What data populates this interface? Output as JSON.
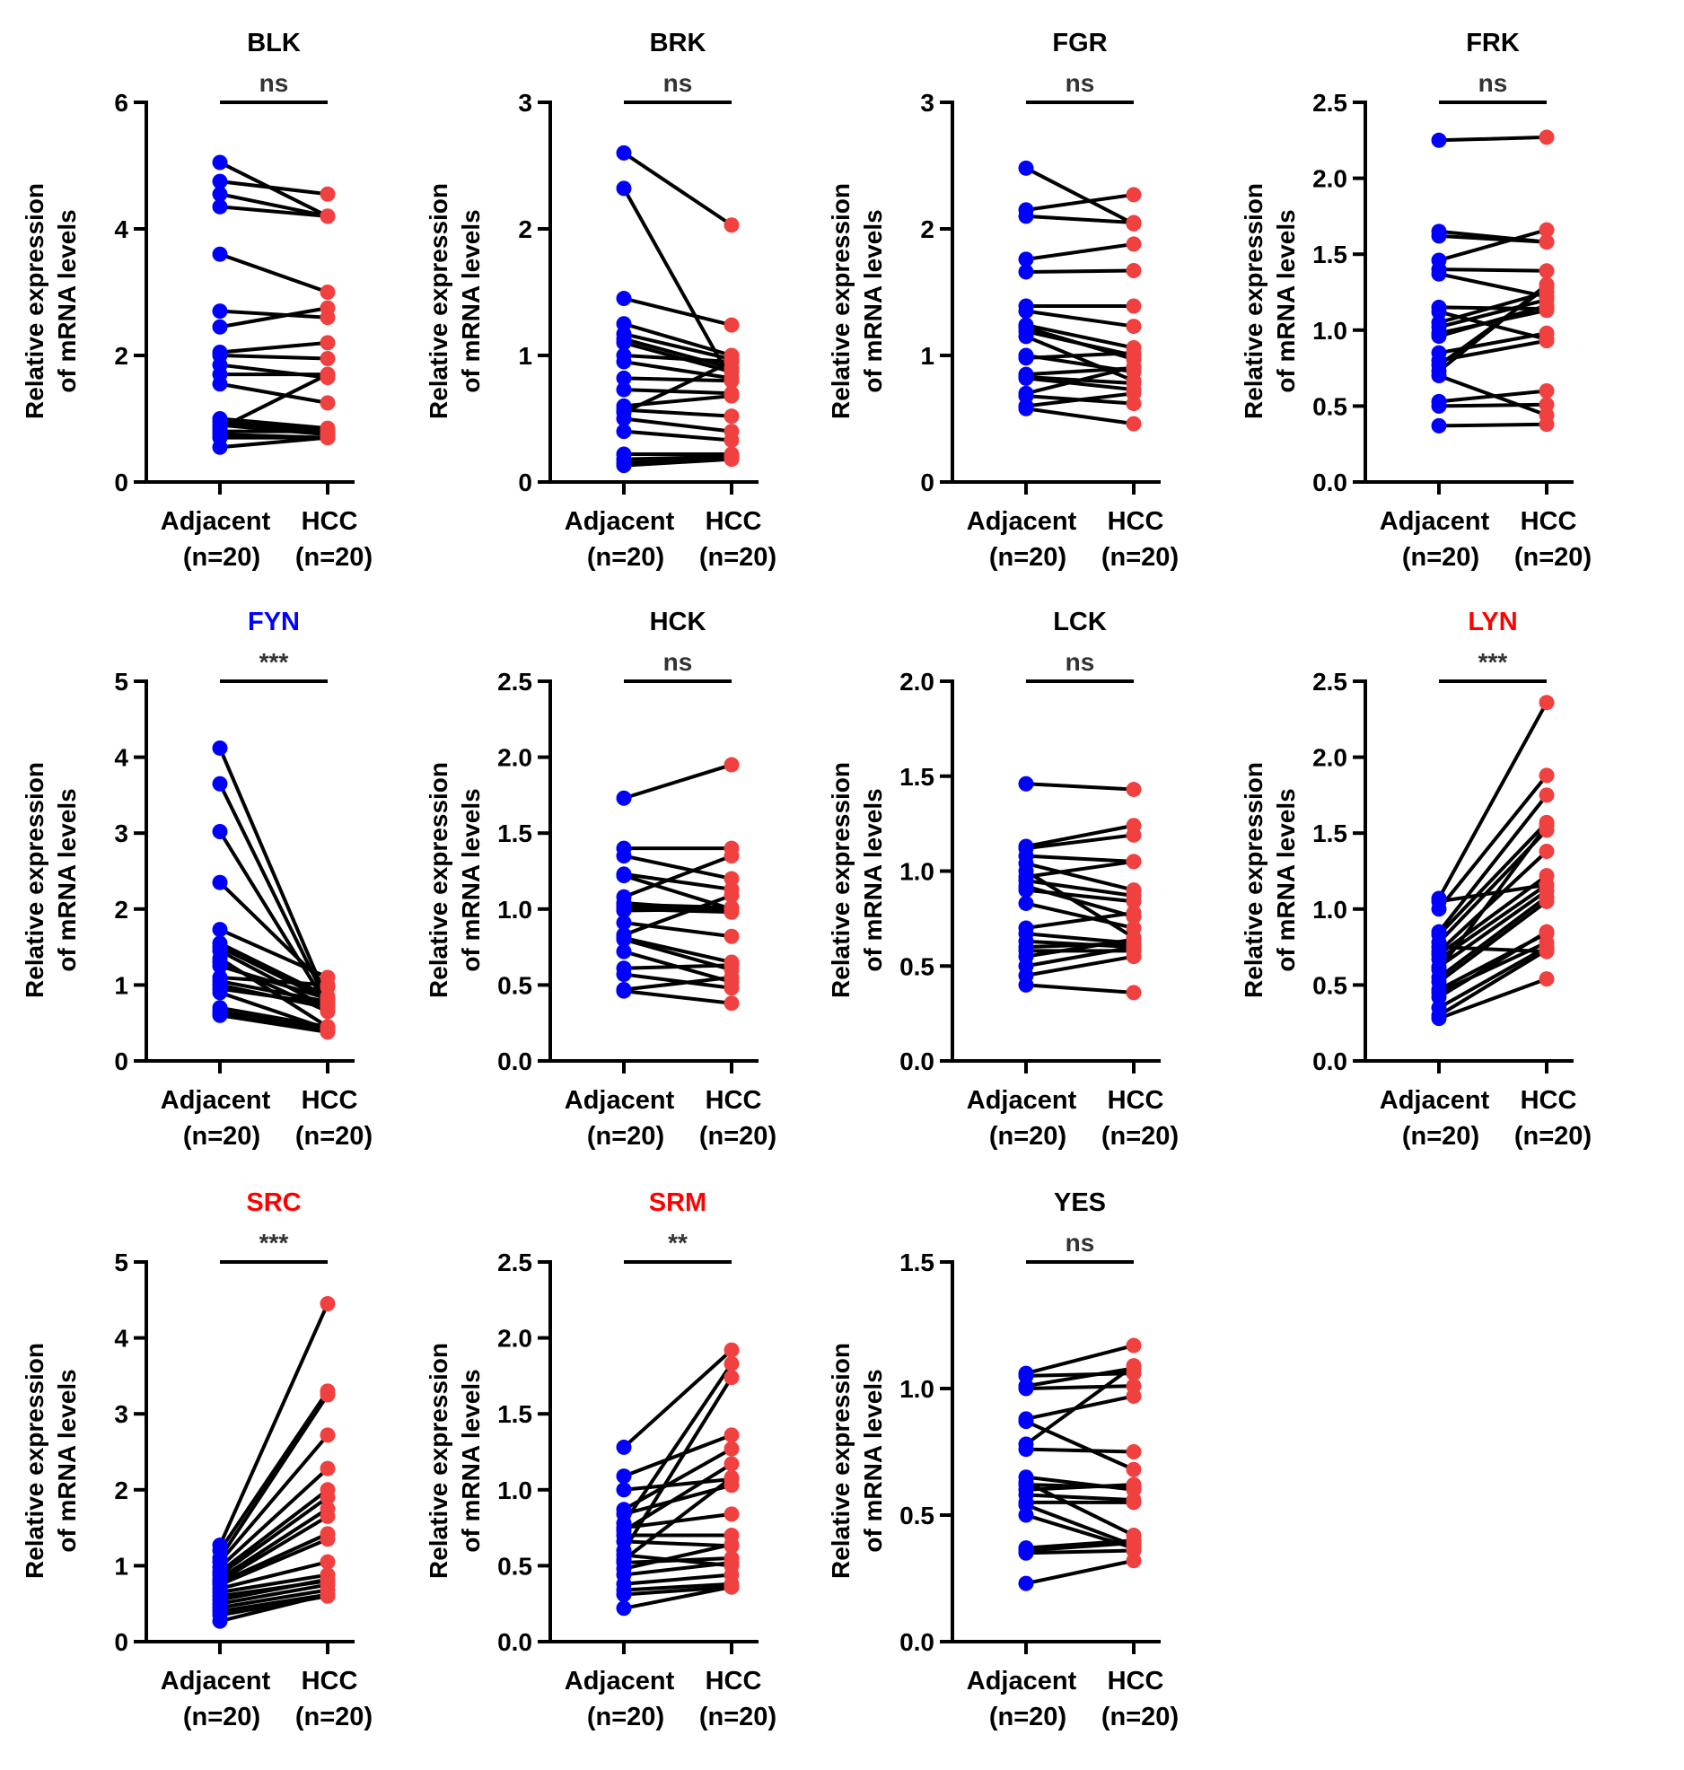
{
  "colors": {
    "adjacent_point": "#0000FF",
    "hcc_point": "#F04040",
    "title_default": "#000000",
    "title_down": "#0000FF",
    "title_up": "#FF0000",
    "line": "#000000"
  },
  "chart_data": [
    {
      "type": "scatter",
      "subtype": "paired-dot",
      "title": "BLK",
      "title_color": "#000000",
      "significance": "ns",
      "ylabel": "Relative expression of mRNA levels",
      "ylabel_lines": [
        "Relative expression",
        "of mRNA levels"
      ],
      "categories": [
        "Adjacent",
        "HCC"
      ],
      "category_n": [
        "(n=20)",
        "(n=20)"
      ],
      "ylim": [
        0,
        6
      ],
      "yticks": [
        0,
        2,
        4,
        6
      ],
      "ytick_labels": [
        "0",
        "2",
        "4",
        "6"
      ],
      "pairs": [
        [
          5.05,
          4.2
        ],
        [
          4.75,
          4.55
        ],
        [
          4.55,
          4.2
        ],
        [
          4.35,
          4.2
        ],
        [
          3.6,
          3.0
        ],
        [
          2.7,
          2.6
        ],
        [
          2.45,
          2.75
        ],
        [
          2.05,
          2.2
        ],
        [
          2.0,
          1.95
        ],
        [
          1.85,
          1.65
        ],
        [
          1.7,
          1.7
        ],
        [
          1.55,
          1.25
        ],
        [
          1.0,
          0.85
        ],
        [
          0.95,
          0.8
        ],
        [
          0.9,
          0.75
        ],
        [
          0.85,
          1.7
        ],
        [
          0.8,
          0.8
        ],
        [
          0.75,
          0.7
        ],
        [
          0.7,
          0.7
        ],
        [
          0.55,
          0.7
        ]
      ]
    },
    {
      "type": "scatter",
      "subtype": "paired-dot",
      "title": "BRK",
      "title_color": "#000000",
      "significance": "ns",
      "ylabel": "Relative expression of mRNA levels",
      "ylabel_lines": [
        "Relative expression",
        "of mRNA levels"
      ],
      "categories": [
        "Adjacent",
        "HCC"
      ],
      "category_n": [
        "(n=20)",
        "(n=20)"
      ],
      "ylim": [
        0,
        3
      ],
      "yticks": [
        0,
        1,
        2,
        3
      ],
      "ytick_labels": [
        "0",
        "1",
        "2",
        "3"
      ],
      "pairs": [
        [
          2.6,
          2.03
        ],
        [
          2.32,
          0.8
        ],
        [
          1.45,
          1.24
        ],
        [
          1.25,
          1.0
        ],
        [
          1.17,
          0.97
        ],
        [
          1.13,
          0.9
        ],
        [
          1.1,
          0.87
        ],
        [
          1.0,
          0.95
        ],
        [
          0.95,
          0.82
        ],
        [
          0.82,
          0.8
        ],
        [
          0.73,
          0.7
        ],
        [
          0.6,
          0.68
        ],
        [
          0.57,
          0.52
        ],
        [
          0.55,
          0.95
        ],
        [
          0.5,
          0.4
        ],
        [
          0.4,
          0.33
        ],
        [
          0.22,
          0.22
        ],
        [
          0.18,
          0.2
        ],
        [
          0.15,
          0.19
        ],
        [
          0.13,
          0.18
        ]
      ]
    },
    {
      "type": "scatter",
      "subtype": "paired-dot",
      "title": "FGR",
      "title_color": "#000000",
      "significance": "ns",
      "ylabel": "Relative expression of mRNA levels",
      "ylabel_lines": [
        "Relative expression",
        "of mRNA levels"
      ],
      "categories": [
        "Adjacent",
        "HCC"
      ],
      "category_n": [
        "(n=20)",
        "(n=20)"
      ],
      "ylim": [
        0,
        3
      ],
      "yticks": [
        0,
        1,
        2,
        3
      ],
      "ytick_labels": [
        "0",
        "1",
        "2",
        "3"
      ],
      "pairs": [
        [
          2.48,
          2.04
        ],
        [
          2.15,
          2.27
        ],
        [
          2.1,
          2.05
        ],
        [
          1.76,
          1.88
        ],
        [
          1.66,
          1.67
        ],
        [
          1.39,
          1.39
        ],
        [
          1.35,
          1.23
        ],
        [
          1.24,
          1.06
        ],
        [
          1.22,
          0.97
        ],
        [
          1.19,
          1.0
        ],
        [
          1.15,
          0.8
        ],
        [
          1.0,
          0.87
        ],
        [
          0.98,
          1.02
        ],
        [
          0.85,
          0.9
        ],
        [
          0.83,
          0.78
        ],
        [
          0.82,
          0.73
        ],
        [
          0.7,
          0.91
        ],
        [
          0.68,
          0.62
        ],
        [
          0.6,
          0.7
        ],
        [
          0.58,
          0.46
        ]
      ]
    },
    {
      "type": "scatter",
      "subtype": "paired-dot",
      "title": "FRK",
      "title_color": "#000000",
      "significance": "ns",
      "ylabel": "Relative expression of mRNA levels",
      "ylabel_lines": [
        "Relative expression",
        "of mRNA levels"
      ],
      "categories": [
        "Adjacent",
        "HCC"
      ],
      "category_n": [
        "(n=20)",
        "(n=20)"
      ],
      "ylim": [
        0,
        2.5
      ],
      "yticks": [
        0,
        0.5,
        1.0,
        1.5,
        2.0,
        2.5
      ],
      "ytick_labels": [
        "0.0",
        "0.5",
        "1.0",
        "1.5",
        "2.0",
        "2.5"
      ],
      "pairs": [
        [
          2.25,
          2.27
        ],
        [
          1.65,
          1.58
        ],
        [
          1.62,
          1.58
        ],
        [
          1.46,
          1.66
        ],
        [
          1.4,
          1.39
        ],
        [
          1.37,
          1.22
        ],
        [
          1.15,
          1.14
        ],
        [
          1.12,
          0.94
        ],
        [
          1.05,
          1.25
        ],
        [
          1.02,
          1.2
        ],
        [
          0.98,
          1.13
        ],
        [
          0.96,
          1.16
        ],
        [
          0.85,
          0.98
        ],
        [
          0.8,
          0.93
        ],
        [
          0.77,
          1.28
        ],
        [
          0.73,
          1.3
        ],
        [
          0.7,
          0.44
        ],
        [
          0.53,
          0.6
        ],
        [
          0.5,
          0.51
        ],
        [
          0.37,
          0.38
        ]
      ]
    },
    {
      "type": "scatter",
      "subtype": "paired-dot",
      "title": "FYN",
      "title_color": "#0000FF",
      "significance": "***",
      "ylabel": "Relative expression of mRNA levels",
      "ylabel_lines": [
        "Relative expression",
        "of mRNA levels"
      ],
      "categories": [
        "Adjacent",
        "HCC"
      ],
      "category_n": [
        "(n=20)",
        "(n=20)"
      ],
      "ylim": [
        0,
        5
      ],
      "yticks": [
        0,
        1,
        2,
        3,
        4,
        5
      ],
      "ytick_labels": [
        "0",
        "1",
        "2",
        "3",
        "4",
        "5"
      ],
      "pairs": [
        [
          4.12,
          0.8
        ],
        [
          3.65,
          0.75
        ],
        [
          3.02,
          0.72
        ],
        [
          2.35,
          0.97
        ],
        [
          1.73,
          1.1
        ],
        [
          1.55,
          0.85
        ],
        [
          1.5,
          0.8
        ],
        [
          1.45,
          0.7
        ],
        [
          1.35,
          0.45
        ],
        [
          1.3,
          0.65
        ],
        [
          1.25,
          0.82
        ],
        [
          1.1,
          1.0
        ],
        [
          1.05,
          0.78
        ],
        [
          1.0,
          0.7
        ],
        [
          0.95,
          0.75
        ],
        [
          0.9,
          0.42
        ],
        [
          0.7,
          0.45
        ],
        [
          0.65,
          0.42
        ],
        [
          0.62,
          0.4
        ],
        [
          0.6,
          0.38
        ]
      ]
    },
    {
      "type": "scatter",
      "subtype": "paired-dot",
      "title": "HCK",
      "title_color": "#000000",
      "significance": "ns",
      "ylabel": "Relative expression of mRNA levels",
      "ylabel_lines": [
        "Relative expression",
        "of mRNA levels"
      ],
      "categories": [
        "Adjacent",
        "HCC"
      ],
      "category_n": [
        "(n=20)",
        "(n=20)"
      ],
      "ylim": [
        0,
        2.5
      ],
      "yticks": [
        0,
        0.5,
        1.0,
        1.5,
        2.0,
        2.5
      ],
      "ytick_labels": [
        "0.0",
        "0.5",
        "1.0",
        "1.5",
        "2.0",
        "2.5"
      ],
      "pairs": [
        [
          1.73,
          1.95
        ],
        [
          1.4,
          1.4
        ],
        [
          1.35,
          1.2
        ],
        [
          1.23,
          1.13
        ],
        [
          1.22,
          1.0
        ],
        [
          1.08,
          1.35
        ],
        [
          1.04,
          0.99
        ],
        [
          1.03,
          1.01
        ],
        [
          1.02,
          0.98
        ],
        [
          1.0,
          0.98
        ],
        [
          0.99,
          1.0
        ],
        [
          0.91,
          0.82
        ],
        [
          0.83,
          1.09
        ],
        [
          0.81,
          0.65
        ],
        [
          0.8,
          0.6
        ],
        [
          0.72,
          0.52
        ],
        [
          0.61,
          0.63
        ],
        [
          0.57,
          0.48
        ],
        [
          0.47,
          0.55
        ],
        [
          0.46,
          0.38
        ]
      ]
    },
    {
      "type": "scatter",
      "subtype": "paired-dot",
      "title": "LCK",
      "title_color": "#000000",
      "significance": "ns",
      "ylabel": "Relative expression of mRNA levels",
      "ylabel_lines": [
        "Relative expression",
        "of mRNA levels"
      ],
      "categories": [
        "Adjacent",
        "HCC"
      ],
      "category_n": [
        "(n=20)",
        "(n=20)"
      ],
      "ylim": [
        0,
        2.0
      ],
      "yticks": [
        0,
        0.5,
        1.0,
        1.5,
        2.0
      ],
      "ytick_labels": [
        "0.0",
        "0.5",
        "1.0",
        "1.5",
        "2.0"
      ],
      "pairs": [
        [
          1.46,
          1.43
        ],
        [
          1.13,
          1.24
        ],
        [
          1.12,
          1.19
        ],
        [
          1.08,
          1.05
        ],
        [
          1.04,
          0.9
        ],
        [
          1.0,
          0.65
        ],
        [
          0.97,
          1.05
        ],
        [
          0.95,
          0.87
        ],
        [
          0.92,
          0.76
        ],
        [
          0.9,
          0.84
        ],
        [
          0.83,
          0.7
        ],
        [
          0.7,
          0.78
        ],
        [
          0.67,
          0.62
        ],
        [
          0.63,
          0.6
        ],
        [
          0.58,
          0.58
        ],
        [
          0.6,
          0.62
        ],
        [
          0.55,
          0.64
        ],
        [
          0.5,
          0.6
        ],
        [
          0.45,
          0.55
        ],
        [
          0.4,
          0.36
        ]
      ]
    },
    {
      "type": "scatter",
      "subtype": "paired-dot",
      "title": "LYN",
      "title_color": "#FF0000",
      "significance": "***",
      "ylabel": "Relative expression of mRNA levels",
      "ylabel_lines": [
        "Relative expression",
        "of mRNA levels"
      ],
      "categories": [
        "Adjacent",
        "HCC"
      ],
      "category_n": [
        "(n=20)",
        "(n=20)"
      ],
      "ylim": [
        0,
        2.5
      ],
      "yticks": [
        0,
        0.5,
        1.0,
        1.5,
        2.0,
        2.5
      ],
      "ytick_labels": [
        "0.0",
        "0.5",
        "1.0",
        "1.5",
        "2.0",
        "2.5"
      ],
      "pairs": [
        [
          1.07,
          2.36
        ],
        [
          1.05,
          1.16
        ],
        [
          1.0,
          1.88
        ],
        [
          0.85,
          1.75
        ],
        [
          0.83,
          1.57
        ],
        [
          0.78,
          1.52
        ],
        [
          0.75,
          0.72
        ],
        [
          0.72,
          1.38
        ],
        [
          0.7,
          1.22
        ],
        [
          0.67,
          1.16
        ],
        [
          0.62,
          1.12
        ],
        [
          0.6,
          1.55
        ],
        [
          0.55,
          1.08
        ],
        [
          0.52,
          1.05
        ],
        [
          0.47,
          0.84
        ],
        [
          0.45,
          0.78
        ],
        [
          0.42,
          0.85
        ],
        [
          0.35,
          0.75
        ],
        [
          0.3,
          0.73
        ],
        [
          0.28,
          0.54
        ]
      ]
    },
    {
      "type": "scatter",
      "subtype": "paired-dot",
      "title": "SRC",
      "title_color": "#FF0000",
      "significance": "***",
      "ylabel": "Relative expression of mRNA levels",
      "ylabel_lines": [
        "Relative expression",
        "of mRNA levels"
      ],
      "categories": [
        "Adjacent",
        "HCC"
      ],
      "category_n": [
        "(n=20)",
        "(n=20)"
      ],
      "ylim": [
        0,
        5
      ],
      "yticks": [
        0,
        1,
        2,
        3,
        4,
        5
      ],
      "ytick_labels": [
        "0",
        "1",
        "2",
        "3",
        "4",
        "5"
      ],
      "pairs": [
        [
          1.27,
          4.45
        ],
        [
          1.2,
          3.3
        ],
        [
          1.1,
          3.25
        ],
        [
          1.05,
          2.72
        ],
        [
          0.98,
          2.28
        ],
        [
          0.92,
          2.0
        ],
        [
          0.88,
          1.9
        ],
        [
          0.83,
          1.75
        ],
        [
          0.8,
          1.65
        ],
        [
          0.78,
          1.42
        ],
        [
          0.75,
          1.35
        ],
        [
          0.7,
          1.05
        ],
        [
          0.65,
          0.88
        ],
        [
          0.6,
          0.8
        ],
        [
          0.55,
          0.82
        ],
        [
          0.5,
          0.75
        ],
        [
          0.45,
          0.68
        ],
        [
          0.4,
          0.62
        ],
        [
          0.35,
          0.6
        ],
        [
          0.27,
          0.62
        ]
      ]
    },
    {
      "type": "scatter",
      "subtype": "paired-dot",
      "title": "SRM",
      "title_color": "#FF0000",
      "significance": "**",
      "ylabel": "Relative expression of mRNA levels",
      "ylabel_lines": [
        "Relative expression",
        "of mRNA levels"
      ],
      "categories": [
        "Adjacent",
        "HCC"
      ],
      "category_n": [
        "(n=20)",
        "(n=20)"
      ],
      "ylim": [
        0,
        2.5
      ],
      "yticks": [
        0,
        0.5,
        1.0,
        1.5,
        2.0,
        2.5
      ],
      "ytick_labels": [
        "0.0",
        "0.5",
        "1.0",
        "1.5",
        "2.0",
        "2.5"
      ],
      "pairs": [
        [
          1.28,
          1.92
        ],
        [
          1.09,
          1.36
        ],
        [
          1.0,
          1.07
        ],
        [
          0.87,
          1.27
        ],
        [
          0.84,
          1.03
        ],
        [
          0.78,
          1.83
        ],
        [
          0.75,
          0.84
        ],
        [
          0.73,
          1.17
        ],
        [
          0.7,
          0.7
        ],
        [
          0.66,
          0.63
        ],
        [
          0.6,
          1.74
        ],
        [
          0.57,
          0.5
        ],
        [
          0.54,
          1.08
        ],
        [
          0.52,
          0.55
        ],
        [
          0.48,
          0.64
        ],
        [
          0.44,
          0.52
        ],
        [
          0.38,
          0.44
        ],
        [
          0.34,
          0.38
        ],
        [
          0.31,
          0.36
        ],
        [
          0.22,
          0.36
        ]
      ]
    },
    {
      "type": "scatter",
      "subtype": "paired-dot",
      "title": "YES",
      "title_color": "#000000",
      "significance": "ns",
      "ylabel": "Relative expression of mRNA levels",
      "ylabel_lines": [
        "Relative expression",
        "of mRNA levels"
      ],
      "categories": [
        "Adjacent",
        "HCC"
      ],
      "category_n": [
        "(n=20)",
        "(n=20)"
      ],
      "ylim": [
        0,
        1.5
      ],
      "yticks": [
        0,
        0.5,
        1.0,
        1.5
      ],
      "ytick_labels": [
        "0.0",
        "0.5",
        "1.0",
        "1.5"
      ],
      "pairs": [
        [
          1.06,
          1.17
        ],
        [
          1.05,
          1.06
        ],
        [
          1.01,
          1.08
        ],
        [
          1.0,
          1.01
        ],
        [
          0.88,
          0.97
        ],
        [
          0.87,
          0.68
        ],
        [
          0.78,
          1.09
        ],
        [
          0.76,
          0.75
        ],
        [
          0.65,
          0.6
        ],
        [
          0.63,
          0.42
        ],
        [
          0.62,
          0.61
        ],
        [
          0.6,
          0.62
        ],
        [
          0.58,
          0.56
        ],
        [
          0.55,
          0.55
        ],
        [
          0.54,
          0.38
        ],
        [
          0.5,
          0.37
        ],
        [
          0.37,
          0.4
        ],
        [
          0.36,
          0.39
        ],
        [
          0.35,
          0.36
        ],
        [
          0.23,
          0.32
        ]
      ]
    }
  ]
}
